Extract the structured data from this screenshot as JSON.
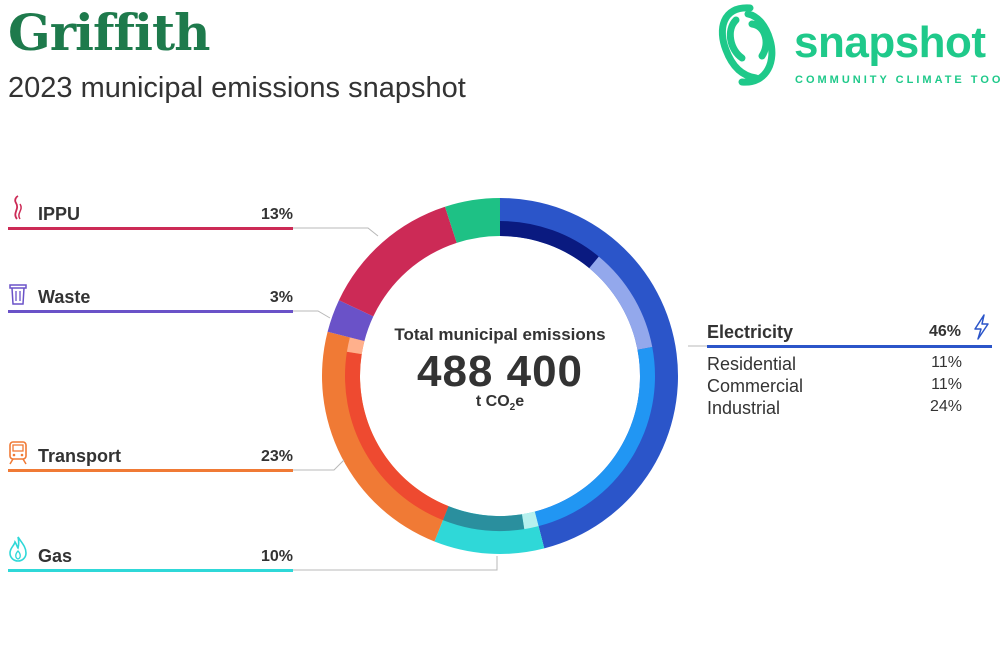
{
  "header": {
    "title": "Griffith",
    "subtitle": "2023 municipal emissions snapshot"
  },
  "logo": {
    "name": "snapshot",
    "tagline": "COMMUNITY CLIMATE TOOL",
    "color": "#1fc98a"
  },
  "center": {
    "label": "Total municipal emissions",
    "value": "488 400",
    "unit_prefix": "t CO",
    "unit_sub": "2",
    "unit_suffix": "e"
  },
  "categories": [
    {
      "name": "IPPU",
      "pct": "13%",
      "color": "#cc2a56",
      "icon": "smoke-icon"
    },
    {
      "name": "Waste",
      "pct": "3%",
      "color": "#6a52c8",
      "icon": "bin-icon"
    },
    {
      "name": "Transport",
      "pct": "23%",
      "color": "#f07a35",
      "icon": "train-icon"
    },
    {
      "name": "Gas",
      "pct": "10%",
      "color": "#2fd8d8",
      "icon": "flame-icon"
    }
  ],
  "electricity": {
    "name": "Electricity",
    "pct": "46%",
    "color": "#2b55c9",
    "icon": "lightning-icon",
    "subs": [
      {
        "name": "Residential",
        "pct": "11%"
      },
      {
        "name": "Commercial",
        "pct": "11%"
      },
      {
        "name": "Industrial",
        "pct": "24%"
      }
    ]
  },
  "chart_data": {
    "type": "pie",
    "title": "2023 municipal emissions snapshot",
    "total": 488400,
    "unit": "t CO2e",
    "outer_ring": [
      {
        "name": "Electricity",
        "value": 46,
        "color": "#2b55c9"
      },
      {
        "name": "Gas",
        "value": 10,
        "color": "#2fd8d8"
      },
      {
        "name": "Transport",
        "value": 23,
        "color": "#f07a35"
      },
      {
        "name": "Waste",
        "value": 3,
        "color": "#6a52c8"
      },
      {
        "name": "IPPU",
        "value": 13,
        "color": "#cc2a56"
      },
      {
        "name": "",
        "value": 5,
        "color": "#1ec185"
      }
    ],
    "inner_ring": [
      {
        "parent": "Electricity",
        "value": 11,
        "color": "#0a1a80"
      },
      {
        "parent": "Electricity",
        "value": 11,
        "color": "#93a8ec"
      },
      {
        "parent": "Electricity",
        "value": 24,
        "color": "#2196f3"
      },
      {
        "parent": "Gas",
        "value": 1.5,
        "color": "#b6f0ee"
      },
      {
        "parent": "Gas",
        "value": 8.5,
        "color": "#2a8f9e"
      },
      {
        "parent": "Transport",
        "value": 21.5,
        "color": "#ee4a30"
      },
      {
        "parent": "Transport",
        "value": 1.5,
        "color": "#ffb08c"
      }
    ]
  }
}
